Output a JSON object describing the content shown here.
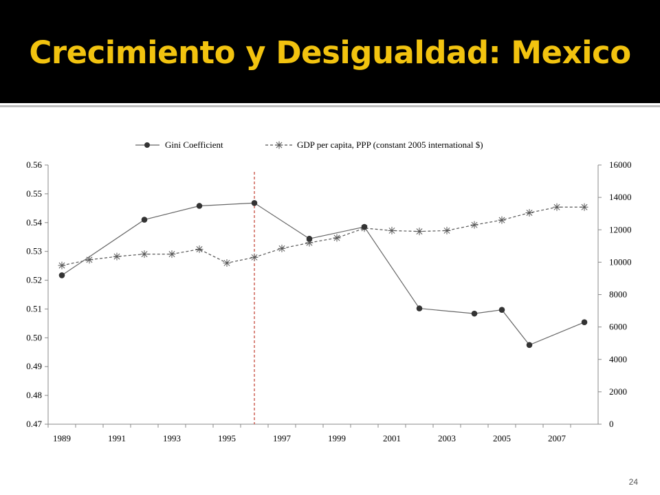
{
  "slide": {
    "title": "Crecimiento y Desigualdad: Mexico",
    "number": "24"
  },
  "colors": {
    "title_bg": "#000000",
    "title_text": "#f2c30f",
    "gini_line": "#666666",
    "gini_marker": "#333333",
    "gdp_line": "#555555",
    "marker_line": "#c0392b"
  },
  "chart_data": {
    "type": "line",
    "legend_position": "top",
    "grid": false,
    "x_ticks": [
      "1989",
      "1991",
      "1993",
      "1995",
      "1997",
      "1999",
      "2001",
      "2003",
      "2005",
      "2007"
    ],
    "left_axis": {
      "ylim": [
        0.47,
        0.56
      ],
      "ticks": [
        "0.47",
        "0.48",
        "0.49",
        "0.50",
        "0.51",
        "0.52",
        "0.53",
        "0.54",
        "0.55",
        "0.56"
      ]
    },
    "right_axis": {
      "ylim": [
        0,
        16000
      ],
      "ticks": [
        "0",
        "2000",
        "4000",
        "6000",
        "8000",
        "10000",
        "12000",
        "14000",
        "16000"
      ]
    },
    "vertical_marker_year": 1996,
    "series": [
      {
        "name": "Gini Coefficient",
        "axis": "left",
        "style": "solid-dot",
        "x": [
          1989,
          1992,
          1994,
          1996,
          1998,
          2000,
          2002,
          2004,
          2005,
          2006,
          2008
        ],
        "values": [
          0.5217,
          0.541,
          0.5458,
          0.5468,
          0.5344,
          0.5385,
          0.5102,
          0.5084,
          0.5097,
          0.4975,
          0.5054
        ]
      },
      {
        "name": "GDP per capita, PPP (constant 2005 international $)",
        "axis": "right",
        "style": "dashed-star",
        "x": [
          1989,
          1990,
          1991,
          1992,
          1993,
          1994,
          1995,
          1996,
          1997,
          1998,
          1999,
          2000,
          2001,
          2002,
          2003,
          2004,
          2005,
          2006,
          2007,
          2008
        ],
        "values": [
          9800,
          10150,
          10350,
          10500,
          10500,
          10800,
          9950,
          10300,
          10850,
          11200,
          11500,
          12100,
          11950,
          11900,
          11950,
          12300,
          12600,
          13050,
          13400,
          13400
        ]
      }
    ]
  }
}
